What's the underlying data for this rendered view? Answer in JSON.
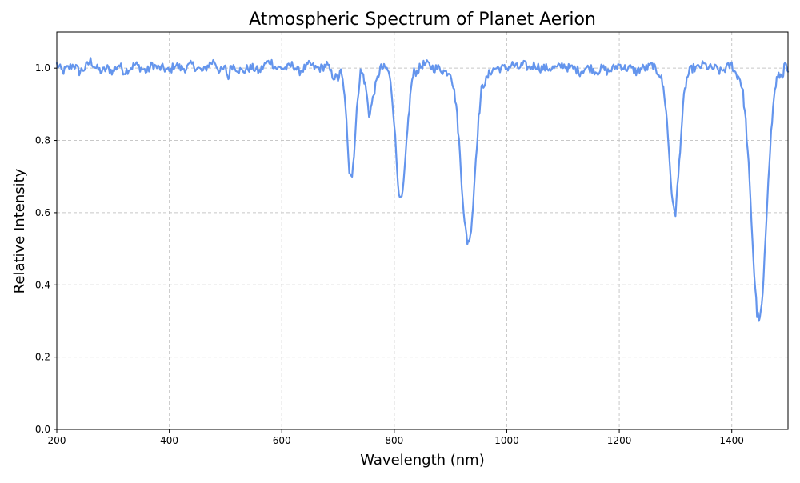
{
  "chart_data": {
    "type": "line",
    "title": "Atmospheric Spectrum of Planet Aerion",
    "xlabel": "Wavelength (nm)",
    "ylabel": "Relative Intensity",
    "xlim": [
      200,
      1500
    ],
    "ylim": [
      0,
      1.1
    ],
    "xticks": [
      200,
      400,
      600,
      800,
      1000,
      1200,
      1400
    ],
    "yticks": [
      0.0,
      0.2,
      0.4,
      0.6,
      0.8,
      1.0
    ],
    "xtick_labels": [
      "200",
      "400",
      "600",
      "800",
      "1000",
      "1200",
      "1400"
    ],
    "ytick_labels": [
      "0.0",
      "0.2",
      "0.4",
      "0.6",
      "0.8",
      "1.0"
    ],
    "grid": true,
    "grid_style": "dashed",
    "line_color": "#6495ed",
    "series": [
      {
        "x": [
          200,
          210,
          220,
          230,
          240,
          250,
          260,
          270,
          280,
          290,
          300,
          310,
          320,
          330,
          340,
          350,
          360,
          370,
          380,
          390,
          400,
          410,
          420,
          430,
          440,
          450,
          460,
          470,
          480,
          490,
          500,
          505,
          510,
          520,
          530,
          540,
          550,
          560,
          570,
          580,
          590,
          600,
          610,
          620,
          630,
          640,
          650,
          660,
          670,
          680,
          690,
          700,
          705,
          710,
          715,
          720,
          725,
          730,
          735,
          740,
          745,
          750,
          755,
          760,
          765,
          770,
          775,
          780,
          785,
          790,
          795,
          800,
          805,
          810,
          815,
          820,
          825,
          830,
          835,
          840,
          845,
          850,
          860,
          870,
          880,
          890,
          900,
          905,
          910,
          915,
          920,
          925,
          930,
          935,
          940,
          945,
          950,
          955,
          960,
          965,
          970,
          980,
          990,
          1000,
          1010,
          1020,
          1030,
          1040,
          1050,
          1060,
          1070,
          1080,
          1090,
          1100,
          1110,
          1120,
          1130,
          1140,
          1150,
          1160,
          1170,
          1180,
          1190,
          1200,
          1210,
          1220,
          1230,
          1240,
          1250,
          1260,
          1265,
          1270,
          1275,
          1280,
          1285,
          1290,
          1295,
          1300,
          1305,
          1310,
          1315,
          1320,
          1325,
          1330,
          1340,
          1350,
          1360,
          1370,
          1380,
          1390,
          1400,
          1405,
          1410,
          1415,
          1420,
          1425,
          1430,
          1435,
          1440,
          1445,
          1450,
          1455,
          1460,
          1465,
          1470,
          1475,
          1480,
          1485,
          1490,
          1495,
          1500
        ],
        "y": [
          1.01,
          0.99,
          1.0,
          1.01,
          0.99,
          1.0,
          1.02,
          1.0,
          0.99,
          1.0,
          0.99,
          1.01,
          0.99,
          1.0,
          1.01,
          1.0,
          0.99,
          1.01,
          1.0,
          1.0,
          0.99,
          1.01,
          1.0,
          1.0,
          1.01,
          1.0,
          0.99,
          1.01,
          1.02,
          0.99,
          1.0,
          0.97,
          1.01,
          1.0,
          0.99,
          1.0,
          1.0,
          0.99,
          1.01,
          1.02,
          1.0,
          1.0,
          1.0,
          1.01,
          0.99,
          1.0,
          1.01,
          1.0,
          1.0,
          1.01,
          0.98,
          0.97,
          0.99,
          0.95,
          0.85,
          0.72,
          0.7,
          0.8,
          0.92,
          0.99,
          0.98,
          0.94,
          0.87,
          0.9,
          0.94,
          0.97,
          1.0,
          1.0,
          1.0,
          0.99,
          0.94,
          0.85,
          0.72,
          0.63,
          0.65,
          0.75,
          0.86,
          0.95,
          0.99,
          0.99,
          1.0,
          1.01,
          1.01,
          1.0,
          1.0,
          0.99,
          0.99,
          0.95,
          0.9,
          0.8,
          0.68,
          0.57,
          0.52,
          0.53,
          0.62,
          0.75,
          0.86,
          0.94,
          0.96,
          0.97,
          0.99,
          1.0,
          1.0,
          1.0,
          1.01,
          1.0,
          1.01,
          1.0,
          1.01,
          1.0,
          1.0,
          1.0,
          1.0,
          1.01,
          1.0,
          1.0,
          0.99,
          1.0,
          1.0,
          0.99,
          1.0,
          0.99,
          1.0,
          1.01,
          1.0,
          1.0,
          0.99,
          1.0,
          1.0,
          1.01,
          0.99,
          0.99,
          0.97,
          0.93,
          0.85,
          0.73,
          0.62,
          0.6,
          0.7,
          0.82,
          0.92,
          0.97,
          0.99,
          1.0,
          1.0,
          1.01,
          1.0,
          1.0,
          0.99,
          1.0,
          1.01,
          0.99,
          0.98,
          0.97,
          0.93,
          0.85,
          0.73,
          0.58,
          0.43,
          0.32,
          0.3,
          0.37,
          0.52,
          0.7,
          0.82,
          0.92,
          0.97,
          0.98,
          0.98,
          1.01,
          0.99
        ]
      }
    ]
  }
}
